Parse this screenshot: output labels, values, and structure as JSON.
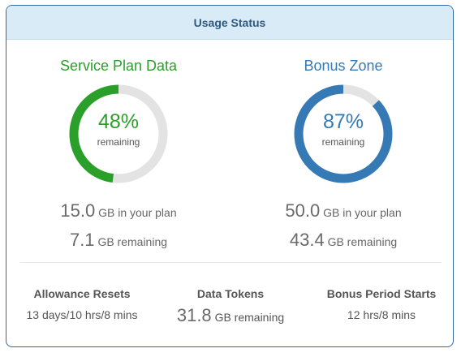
{
  "header": {
    "title": "Usage Status"
  },
  "plans": [
    {
      "title": "Service Plan Data",
      "percent_label": "48%",
      "percent_value": 48,
      "remaining_label": "remaining",
      "color": "#2aa02a",
      "total_value": "15.0",
      "total_suffix": "GB in your plan",
      "remaining_value": "7.1",
      "remaining_suffix": "GB remaining"
    },
    {
      "title": "Bonus Zone",
      "percent_label": "87%",
      "percent_value": 87,
      "remaining_label": "remaining",
      "color": "#3579b5",
      "total_value": "50.0",
      "total_suffix": "GB in your plan",
      "remaining_value": "43.4",
      "remaining_suffix": "GB remaining"
    }
  ],
  "track_color": "#e3e3e3",
  "footer": {
    "allowance": {
      "label": "Allowance Resets",
      "value": "13 days/10 hrs/8 mins"
    },
    "tokens": {
      "label": "Data Tokens",
      "value": "31.8",
      "suffix": "GB remaining"
    },
    "bonus_period": {
      "label": "Bonus Period Starts",
      "value": "12 hrs/8 mins"
    }
  }
}
